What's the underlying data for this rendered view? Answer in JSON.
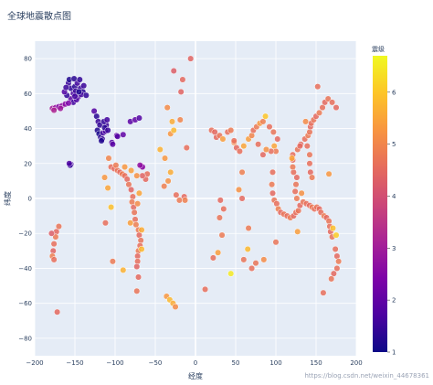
{
  "watermark": "https://blog.csdn.net/weixin_44678361",
  "chart_data": {
    "type": "scatter",
    "title": "全球地震散点图",
    "xlabel": "经度",
    "ylabel": "纬度",
    "xlim": [
      -200,
      200
    ],
    "ylim": [
      -90,
      90
    ],
    "xticks": [
      -200,
      -150,
      -100,
      -50,
      0,
      50,
      100,
      150,
      200
    ],
    "xtick_labels": [
      "−200",
      "−150",
      "−100",
      "−50",
      "0",
      "50",
      "100",
      "150",
      "200"
    ],
    "yticks": [
      -80,
      -60,
      -40,
      -20,
      0,
      20,
      40,
      60,
      80
    ],
    "yticks_labels": [
      "−80",
      "−60",
      "−40",
      "−20",
      "0",
      "20",
      "40",
      "60",
      "80"
    ],
    "grid": true,
    "colorscale": "plasma",
    "colorbar": {
      "title": "震级",
      "range": [
        1,
        6.7
      ],
      "ticks": [
        1,
        2,
        3,
        4,
        5,
        6
      ]
    },
    "points": [
      {
        "x": -158,
        "y": 66,
        "mag": 1.5
      },
      {
        "x": -155,
        "y": 63,
        "mag": 1.4
      },
      {
        "x": -150,
        "y": 64,
        "mag": 1.3
      },
      {
        "x": -147,
        "y": 66,
        "mag": 1.6
      },
      {
        "x": -143,
        "y": 63,
        "mag": 1.5
      },
      {
        "x": -140,
        "y": 61,
        "mag": 1.3
      },
      {
        "x": -152,
        "y": 60,
        "mag": 1.7
      },
      {
        "x": -149,
        "y": 61.5,
        "mag": 1.5
      },
      {
        "x": -146,
        "y": 58,
        "mag": 1.8
      },
      {
        "x": -155,
        "y": 57,
        "mag": 1.9
      },
      {
        "x": -152,
        "y": 55,
        "mag": 1.6
      },
      {
        "x": -160,
        "y": 59,
        "mag": 1.4
      },
      {
        "x": -163,
        "y": 61,
        "mag": 1.8
      },
      {
        "x": -157,
        "y": 68,
        "mag": 1.2
      },
      {
        "x": -151,
        "y": 68.5,
        "mag": 1.3
      },
      {
        "x": -144,
        "y": 68,
        "mag": 1.4
      },
      {
        "x": -139,
        "y": 64.5,
        "mag": 1.5
      },
      {
        "x": -148,
        "y": 56.5,
        "mag": 1.7
      },
      {
        "x": -142,
        "y": 59.5,
        "mag": 1.6
      },
      {
        "x": -136,
        "y": 59,
        "mag": 1.4
      },
      {
        "x": -161,
        "y": 63.5,
        "mag": 1.5
      },
      {
        "x": -145,
        "y": 61,
        "mag": 1.2
      },
      {
        "x": -150,
        "y": 58.5,
        "mag": 1.6
      },
      {
        "x": -178,
        "y": 51.5,
        "mag": 3.0
      },
      {
        "x": -174,
        "y": 52,
        "mag": 2.8
      },
      {
        "x": -170,
        "y": 52.5,
        "mag": 2.5
      },
      {
        "x": -166,
        "y": 53,
        "mag": 2.7
      },
      {
        "x": -162,
        "y": 54,
        "mag": 2.6
      },
      {
        "x": -158,
        "y": 54.5,
        "mag": 2.4
      },
      {
        "x": -176,
        "y": 50.5,
        "mag": 3.2
      },
      {
        "x": -168,
        "y": 51.5,
        "mag": 2.9
      },
      {
        "x": -126,
        "y": 50,
        "mag": 1.8
      },
      {
        "x": -123,
        "y": 47,
        "mag": 1.3
      },
      {
        "x": -121,
        "y": 44,
        "mag": 1.5
      },
      {
        "x": -119,
        "y": 42,
        "mag": 1.4
      },
      {
        "x": -122,
        "y": 39,
        "mag": 1.2
      },
      {
        "x": -120,
        "y": 37,
        "mag": 1.1
      },
      {
        "x": -118,
        "y": 35,
        "mag": 1.3
      },
      {
        "x": -116,
        "y": 34,
        "mag": 1.5
      },
      {
        "x": -117,
        "y": 33,
        "mag": 1.2
      },
      {
        "x": -115,
        "y": 37.5,
        "mag": 1.6
      },
      {
        "x": -112,
        "y": 38.5,
        "mag": 1.7
      },
      {
        "x": -111,
        "y": 42,
        "mag": 1.5
      },
      {
        "x": -114,
        "y": 44,
        "mag": 1.4
      },
      {
        "x": -110,
        "y": 45,
        "mag": 1.6
      },
      {
        "x": -113,
        "y": 40.5,
        "mag": 1.3
      },
      {
        "x": -109,
        "y": 39,
        "mag": 1.5
      },
      {
        "x": -104,
        "y": 32,
        "mag": 1.8
      },
      {
        "x": -103,
        "y": 31,
        "mag": 1.9
      },
      {
        "x": -98,
        "y": 36,
        "mag": 2.0
      },
      {
        "x": -97,
        "y": 35.5,
        "mag": 1.8
      },
      {
        "x": -90,
        "y": 36.5,
        "mag": 2.0
      },
      {
        "x": -81,
        "y": 44,
        "mag": 1.9
      },
      {
        "x": -75,
        "y": 45,
        "mag": 2.0
      },
      {
        "x": -70,
        "y": 46,
        "mag": 1.8
      },
      {
        "x": -155,
        "y": 19.5,
        "mag": 1.6
      },
      {
        "x": -156,
        "y": 19,
        "mag": 1.4
      },
      {
        "x": -157,
        "y": 20,
        "mag": 1.7
      },
      {
        "x": -67,
        "y": 18.5,
        "mag": 2.4
      },
      {
        "x": -66,
        "y": 18,
        "mag": 2.6
      },
      {
        "x": -69,
        "y": 19,
        "mag": 2.7
      },
      {
        "x": -170,
        "y": -16,
        "mag": 4.7
      },
      {
        "x": -173,
        "y": -19,
        "mag": 4.5
      },
      {
        "x": -174,
        "y": -22,
        "mag": 4.8
      },
      {
        "x": -176,
        "y": -26,
        "mag": 4.6
      },
      {
        "x": -177,
        "y": -30,
        "mag": 4.4
      },
      {
        "x": -178,
        "y": -33,
        "mag": 4.9
      },
      {
        "x": -176,
        "y": -35,
        "mag": 4.6
      },
      {
        "x": -172,
        "y": -65,
        "mag": 4.5
      },
      {
        "x": -179,
        "y": -20,
        "mag": 4.3
      },
      {
        "x": -105,
        "y": 18,
        "mag": 4.6
      },
      {
        "x": -101,
        "y": 17,
        "mag": 4.5
      },
      {
        "x": -97,
        "y": 16,
        "mag": 4.7
      },
      {
        "x": -94,
        "y": 15,
        "mag": 4.5
      },
      {
        "x": -91,
        "y": 14,
        "mag": 4.8
      },
      {
        "x": -88,
        "y": 13,
        "mag": 4.6
      },
      {
        "x": -85,
        "y": 11,
        "mag": 4.5
      },
      {
        "x": -83,
        "y": 8,
        "mag": 4.7
      },
      {
        "x": -80,
        "y": 5,
        "mag": 4.4
      },
      {
        "x": -78,
        "y": 1,
        "mag": 4.6
      },
      {
        "x": -79,
        "y": -2,
        "mag": 4.8
      },
      {
        "x": -77,
        "y": -5,
        "mag": 4.5
      },
      {
        "x": -76,
        "y": -8,
        "mag": 4.7
      },
      {
        "x": -75,
        "y": -12,
        "mag": 4.6
      },
      {
        "x": -74,
        "y": -15,
        "mag": 4.9
      },
      {
        "x": -71,
        "y": -18,
        "mag": 4.8
      },
      {
        "x": -70,
        "y": -21,
        "mag": 4.5
      },
      {
        "x": -68,
        "y": -24,
        "mag": 4.7
      },
      {
        "x": -69,
        "y": -27,
        "mag": 4.6
      },
      {
        "x": -71,
        "y": -30,
        "mag": 4.8
      },
      {
        "x": -72,
        "y": -33,
        "mag": 4.5
      },
      {
        "x": -72,
        "y": -36,
        "mag": 4.6
      },
      {
        "x": -73,
        "y": -39,
        "mag": 4.4
      },
      {
        "x": -71,
        "y": -45,
        "mag": 4.5
      },
      {
        "x": -73,
        "y": -53,
        "mag": 4.7
      },
      {
        "x": -62,
        "y": 11,
        "mag": 4.5
      },
      {
        "x": -60,
        "y": 14,
        "mag": 4.6
      },
      {
        "x": -66,
        "y": 13,
        "mag": 4.4
      },
      {
        "x": -99,
        "y": 19,
        "mag": 4.8
      },
      {
        "x": -108,
        "y": 23,
        "mag": 5.0
      },
      {
        "x": -88,
        "y": 18,
        "mag": 5.3
      },
      {
        "x": -80,
        "y": 16,
        "mag": 5.4
      },
      {
        "x": -73,
        "y": 13,
        "mag": 5.2
      },
      {
        "x": -70,
        "y": 3,
        "mag": 5.5
      },
      {
        "x": -72,
        "y": -3,
        "mag": 5.1
      },
      {
        "x": -67,
        "y": -18,
        "mag": 5.6
      },
      {
        "x": -67,
        "y": -29,
        "mag": 5.8
      },
      {
        "x": -81,
        "y": -14,
        "mag": 5.4
      },
      {
        "x": -90,
        "y": -41,
        "mag": 5.7
      },
      {
        "x": -103,
        "y": -36,
        "mag": 4.8
      },
      {
        "x": -112,
        "y": -14,
        "mag": 4.6
      },
      {
        "x": -105,
        "y": -5,
        "mag": 5.9
      },
      {
        "x": -109,
        "y": 6,
        "mag": 5.5
      },
      {
        "x": -113,
        "y": 12,
        "mag": 5.3
      },
      {
        "x": -27,
        "y": 73,
        "mag": 4.3
      },
      {
        "x": -16,
        "y": 68,
        "mag": 4.5
      },
      {
        "x": -18,
        "y": 61,
        "mag": 4.4
      },
      {
        "x": -35,
        "y": 52,
        "mag": 5.1
      },
      {
        "x": -29,
        "y": 44,
        "mag": 5.6
      },
      {
        "x": -31,
        "y": 37,
        "mag": 5.3
      },
      {
        "x": -27,
        "y": 39,
        "mag": 5.8
      },
      {
        "x": -44,
        "y": 28,
        "mag": 5.7
      },
      {
        "x": -38,
        "y": 23,
        "mag": 5.3
      },
      {
        "x": -31,
        "y": 15,
        "mag": 5.6
      },
      {
        "x": -34,
        "y": 10,
        "mag": 5.2
      },
      {
        "x": -39,
        "y": 7,
        "mag": 4.9
      },
      {
        "x": -24,
        "y": 2,
        "mag": 4.6
      },
      {
        "x": -14,
        "y": 1,
        "mag": 4.5
      },
      {
        "x": -20,
        "y": -1,
        "mag": 4.8
      },
      {
        "x": -13,
        "y": -1,
        "mag": 4.9
      },
      {
        "x": -11,
        "y": 29,
        "mag": 4.6
      },
      {
        "x": -19,
        "y": 45,
        "mag": 5.0
      },
      {
        "x": -36,
        "y": -56,
        "mag": 5.3
      },
      {
        "x": -32,
        "y": -58,
        "mag": 5.8
      },
      {
        "x": -28,
        "y": -60,
        "mag": 5.6
      },
      {
        "x": -25,
        "y": -62,
        "mag": 5.1
      },
      {
        "x": -6,
        "y": 80,
        "mag": 4.4
      },
      {
        "x": 26,
        "y": 35,
        "mag": 4.5
      },
      {
        "x": 20,
        "y": 39,
        "mag": 4.6
      },
      {
        "x": 24,
        "y": 38,
        "mag": 4.5
      },
      {
        "x": 30,
        "y": 36,
        "mag": 4.7
      },
      {
        "x": 34,
        "y": 34,
        "mag": 5.4
      },
      {
        "x": 40,
        "y": 38,
        "mag": 4.6
      },
      {
        "x": 44,
        "y": 39,
        "mag": 4.8
      },
      {
        "x": 48,
        "y": 32,
        "mag": 5.1
      },
      {
        "x": 51,
        "y": 29,
        "mag": 4.5
      },
      {
        "x": 55,
        "y": 27,
        "mag": 4.6
      },
      {
        "x": 60,
        "y": 30,
        "mag": 5.5
      },
      {
        "x": 66,
        "y": 34,
        "mag": 5.4
      },
      {
        "x": 70,
        "y": 36,
        "mag": 5.0
      },
      {
        "x": 72,
        "y": 39,
        "mag": 4.6
      },
      {
        "x": 76,
        "y": 41,
        "mag": 4.8
      },
      {
        "x": 80,
        "y": 43,
        "mag": 5.3
      },
      {
        "x": 84,
        "y": 44,
        "mag": 4.9
      },
      {
        "x": 87,
        "y": 47,
        "mag": 6.0
      },
      {
        "x": 92,
        "y": 41,
        "mag": 4.6
      },
      {
        "x": 97,
        "y": 38,
        "mag": 4.7
      },
      {
        "x": 102,
        "y": 34,
        "mag": 4.5
      },
      {
        "x": 98,
        "y": 30,
        "mag": 5.5
      },
      {
        "x": 100,
        "y": 27,
        "mag": 4.8
      },
      {
        "x": 94,
        "y": 27,
        "mag": 4.6
      },
      {
        "x": 88,
        "y": 28,
        "mag": 5.2
      },
      {
        "x": 84,
        "y": 25,
        "mag": 4.5
      },
      {
        "x": 78,
        "y": 31,
        "mag": 4.6
      },
      {
        "x": 58,
        "y": 15,
        "mag": 4.9
      },
      {
        "x": 54,
        "y": 5,
        "mag": 5.2
      },
      {
        "x": 31,
        "y": -1,
        "mag": 4.5
      },
      {
        "x": 35,
        "y": -6,
        "mag": 4.6
      },
      {
        "x": 30,
        "y": -11,
        "mag": 4.7
      },
      {
        "x": 33,
        "y": -21,
        "mag": 4.8
      },
      {
        "x": 28,
        "y": -31,
        "mag": 5.4
      },
      {
        "x": 22,
        "y": -34,
        "mag": 4.6
      },
      {
        "x": 44,
        "y": -43,
        "mag": 6.5
      },
      {
        "x": 12,
        "y": -52,
        "mag": 4.6
      },
      {
        "x": 65,
        "y": -29,
        "mag": 5.8
      },
      {
        "x": 70,
        "y": -40,
        "mag": 4.6
      },
      {
        "x": 75,
        "y": -37,
        "mag": 4.7
      },
      {
        "x": 85,
        "y": -35,
        "mag": 5.1
      },
      {
        "x": 66,
        "y": -17,
        "mag": 4.8
      },
      {
        "x": 60,
        "y": -35,
        "mag": 4.7
      },
      {
        "x": 48,
        "y": 33,
        "mag": 4.6
      },
      {
        "x": 58,
        "y": 0,
        "mag": 4.5
      },
      {
        "x": 96,
        "y": 15,
        "mag": 4.6
      },
      {
        "x": 95,
        "y": 8,
        "mag": 4.8
      },
      {
        "x": 96,
        "y": 3,
        "mag": 4.5
      },
      {
        "x": 98,
        "y": -1,
        "mag": 4.7
      },
      {
        "x": 101,
        "y": -3,
        "mag": 4.6
      },
      {
        "x": 103,
        "y": -6,
        "mag": 4.9
      },
      {
        "x": 106,
        "y": -8,
        "mag": 4.5
      },
      {
        "x": 110,
        "y": -9,
        "mag": 4.7
      },
      {
        "x": 114,
        "y": -10,
        "mag": 4.6
      },
      {
        "x": 118,
        "y": -11,
        "mag": 4.8
      },
      {
        "x": 122,
        "y": -10,
        "mag": 4.5
      },
      {
        "x": 125,
        "y": -8,
        "mag": 4.6
      },
      {
        "x": 128,
        "y": -7,
        "mag": 4.7
      },
      {
        "x": 130,
        "y": -4,
        "mag": 4.5
      },
      {
        "x": 126,
        "y": 0,
        "mag": 4.8
      },
      {
        "x": 124,
        "y": 4,
        "mag": 4.6
      },
      {
        "x": 125,
        "y": 8,
        "mag": 4.7
      },
      {
        "x": 126,
        "y": 12,
        "mag": 4.5
      },
      {
        "x": 122,
        "y": 15,
        "mag": 4.6
      },
      {
        "x": 121,
        "y": 18,
        "mag": 4.8
      },
      {
        "x": 121,
        "y": 22,
        "mag": 4.5
      },
      {
        "x": 121,
        "y": 25,
        "mag": 4.6
      },
      {
        "x": 127,
        "y": 28,
        "mag": 4.7
      },
      {
        "x": 131,
        "y": 31,
        "mag": 4.5
      },
      {
        "x": 136,
        "y": 34,
        "mag": 4.6
      },
      {
        "x": 140,
        "y": 36,
        "mag": 4.8
      },
      {
        "x": 142,
        "y": 38,
        "mag": 4.7
      },
      {
        "x": 143,
        "y": 41,
        "mag": 4.5
      },
      {
        "x": 144,
        "y": 43,
        "mag": 4.6
      },
      {
        "x": 147,
        "y": 45,
        "mag": 4.7
      },
      {
        "x": 150,
        "y": 47,
        "mag": 4.5
      },
      {
        "x": 154,
        "y": 49,
        "mag": 4.8
      },
      {
        "x": 158,
        "y": 52,
        "mag": 4.6
      },
      {
        "x": 161,
        "y": 55,
        "mag": 4.5
      },
      {
        "x": 165,
        "y": 57,
        "mag": 4.7
      },
      {
        "x": 170,
        "y": 55,
        "mag": 4.6
      },
      {
        "x": 175,
        "y": 52,
        "mag": 4.5
      },
      {
        "x": 152,
        "y": 64,
        "mag": 4.6
      },
      {
        "x": 142,
        "y": 25,
        "mag": 4.7
      },
      {
        "x": 142,
        "y": 20,
        "mag": 4.6
      },
      {
        "x": 143,
        "y": 15,
        "mag": 4.5
      },
      {
        "x": 145,
        "y": 12,
        "mag": 4.8
      },
      {
        "x": 139,
        "y": 30,
        "mag": 4.6
      },
      {
        "x": 130,
        "y": 30,
        "mag": 4.5
      },
      {
        "x": 134,
        "y": -2,
        "mag": 4.7
      },
      {
        "x": 138,
        "y": -3,
        "mag": 4.6
      },
      {
        "x": 142,
        "y": -4,
        "mag": 4.5
      },
      {
        "x": 145,
        "y": -5,
        "mag": 4.8
      },
      {
        "x": 148,
        "y": -6,
        "mag": 4.6
      },
      {
        "x": 151,
        "y": -5,
        "mag": 4.7
      },
      {
        "x": 154,
        "y": -6,
        "mag": 4.5
      },
      {
        "x": 156,
        "y": -8,
        "mag": 4.6
      },
      {
        "x": 160,
        "y": -10,
        "mag": 4.8
      },
      {
        "x": 163,
        "y": -11,
        "mag": 4.5
      },
      {
        "x": 166,
        "y": -13,
        "mag": 4.7
      },
      {
        "x": 167,
        "y": -16,
        "mag": 4.6
      },
      {
        "x": 168,
        "y": -19,
        "mag": 4.5
      },
      {
        "x": 170,
        "y": -22,
        "mag": 4.7
      },
      {
        "x": 174,
        "y": -29,
        "mag": 4.6
      },
      {
        "x": 176,
        "y": -33,
        "mag": 4.5
      },
      {
        "x": 178,
        "y": -36,
        "mag": 4.8
      },
      {
        "x": 176,
        "y": -40,
        "mag": 4.6
      },
      {
        "x": 172,
        "y": -43,
        "mag": 4.5
      },
      {
        "x": 169,
        "y": -46,
        "mag": 4.7
      },
      {
        "x": 159,
        "y": -54,
        "mag": 4.6
      },
      {
        "x": 127,
        "y": -19,
        "mag": 5.4
      },
      {
        "x": 120,
        "y": 23,
        "mag": 5.5
      },
      {
        "x": 132,
        "y": 3,
        "mag": 5.2
      },
      {
        "x": 137,
        "y": 44,
        "mag": 5.1
      },
      {
        "x": 166,
        "y": 14,
        "mag": 5.3
      },
      {
        "x": 171,
        "y": -17,
        "mag": 5.9
      },
      {
        "x": 175,
        "y": -21,
        "mag": 6.1
      },
      {
        "x": 100,
        "y": -25,
        "mag": 4.7
      }
    ]
  }
}
